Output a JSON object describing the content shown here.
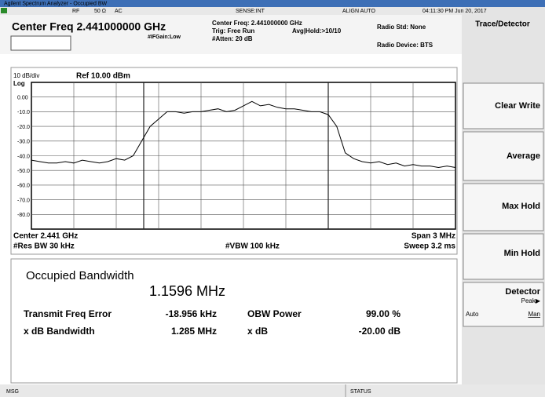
{
  "header": {
    "title": "Agilent Spectrum Analyzer - Occupied BW"
  },
  "status": {
    "rf": "RF",
    "impedance": "50 Ω",
    "coupling": "AC",
    "sense": "SENSE:INT",
    "align": "ALIGN AUTO",
    "datetime": "04:11:30 PM Jun 20, 2017"
  },
  "settings": {
    "center_freq": "Center Freq 2.441000000 GHz",
    "center_freq_info": "Center Freq: 2.441000000 GHz",
    "trig": "Trig: Free Run",
    "avg_hold": "Avg|Hold:>10/10",
    "atten": "#Atten: 20 dB",
    "if_gain": "#IFGain:Low",
    "radio_std": "Radio Std: None",
    "radio_device": "Radio Device: BTS"
  },
  "softkeys": {
    "title": "Trace/Detector",
    "buttons": [
      "Clear Write",
      "Average",
      "Max Hold",
      "Min Hold"
    ],
    "detector": {
      "label": "Detector",
      "value": "Peak▶",
      "auto": "Auto",
      "man": "Man"
    }
  },
  "plot": {
    "scale": "10 dB/div",
    "ref": "Ref 10.00 dBm",
    "log": "Log",
    "ylim": [
      -90,
      10
    ],
    "yticks": [
      {
        "value": 0,
        "label": "0.00"
      },
      {
        "value": -10,
        "label": "-10.0"
      },
      {
        "value": -20,
        "label": "-20.0"
      },
      {
        "value": -30,
        "label": "-30.0"
      },
      {
        "value": -40,
        "label": "-40.0"
      },
      {
        "value": -50,
        "label": "-50.0"
      },
      {
        "value": -60,
        "label": "-60.0"
      },
      {
        "value": -70,
        "label": "-70.0"
      },
      {
        "value": -80,
        "label": "-80.0"
      }
    ],
    "trace": {
      "color": "#000000",
      "values": [
        -43,
        -44,
        -45,
        -45,
        -44,
        -45,
        -43,
        -44,
        -45,
        -44,
        -42,
        -43,
        -40,
        -30,
        -20,
        -15,
        -10,
        -10,
        -11,
        -10,
        -10,
        -9,
        -8,
        -10,
        -9,
        -6,
        -3,
        -6,
        -5,
        -7,
        -8,
        -8,
        -9,
        -10,
        -10,
        -12,
        -20,
        -38,
        -42,
        -44,
        -45,
        -44,
        -46,
        -45,
        -47,
        -46,
        -47,
        -47,
        -48,
        -47,
        -48
      ]
    },
    "center": "Center 2.441 GHz",
    "rbw": "#Res BW 30 kHz",
    "vbw": "#VBW 100 kHz",
    "span": "Span 3 MHz",
    "sweep": "Sweep 3.2 ms"
  },
  "measurement": {
    "title": "Occupied Bandwidth",
    "obw": "1.1596 MHz",
    "rows": [
      [
        "Transmit Freq Error",
        "-18.956 kHz",
        "OBW Power",
        "99.00 %"
      ],
      [
        "x dB Bandwidth",
        "1.285 MHz",
        "x dB",
        "-20.00 dB"
      ]
    ]
  },
  "footer": {
    "msg": "MSG",
    "status": "STATUS"
  }
}
